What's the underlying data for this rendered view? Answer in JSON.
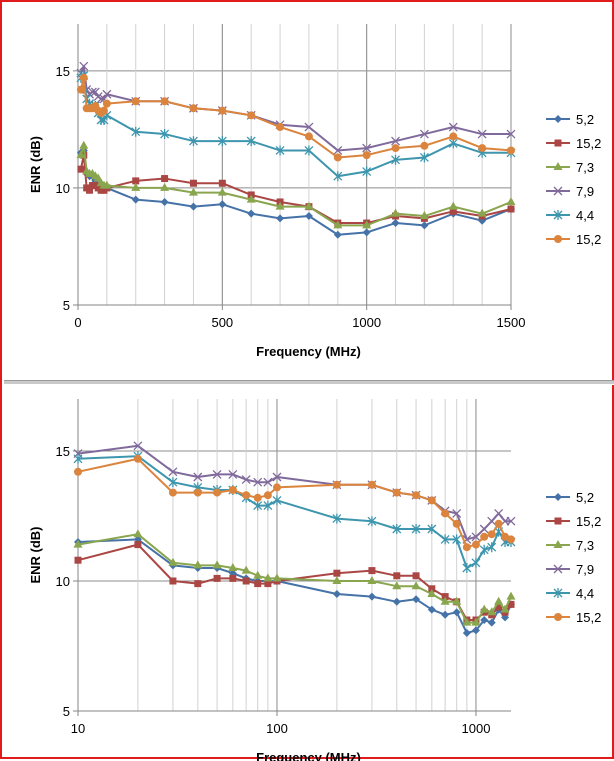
{
  "chart_data": [
    {
      "type": "line",
      "xscale": "linear",
      "xlim": [
        0,
        1500
      ],
      "ylim": [
        5,
        17
      ],
      "xticks": [
        0,
        500,
        1000,
        1500
      ],
      "yticks": [
        5,
        10,
        15
      ],
      "xlabel": "Frequency (MHz)",
      "ylabel": "ENR (dB)",
      "grid": true,
      "legend_position": "right",
      "x": [
        10,
        20,
        30,
        40,
        50,
        60,
        70,
        80,
        90,
        100,
        200,
        300,
        400,
        500,
        600,
        700,
        800,
        900,
        1000,
        1100,
        1200,
        1300,
        1400,
        1500
      ],
      "series": [
        {
          "name": "5,2",
          "color": "#4572a7",
          "marker": "diamond",
          "values": [
            11.5,
            11.6,
            10.6,
            10.5,
            10.5,
            10.3,
            10.1,
            10.0,
            10.0,
            10.0,
            9.5,
            9.4,
            9.2,
            9.3,
            8.9,
            8.7,
            8.8,
            8.0,
            8.1,
            8.5,
            8.4,
            8.9,
            8.6,
            9.1
          ]
        },
        {
          "name": "15,2",
          "color": "#aa4643",
          "marker": "square",
          "values": [
            10.8,
            11.4,
            10.0,
            9.9,
            10.1,
            10.1,
            10.0,
            9.9,
            9.9,
            10.0,
            10.3,
            10.4,
            10.2,
            10.2,
            9.7,
            9.4,
            9.2,
            8.5,
            8.5,
            8.8,
            8.7,
            9.0,
            8.8,
            9.1
          ]
        },
        {
          "name": "7,3",
          "color": "#89a54e",
          "marker": "triangle",
          "values": [
            11.4,
            11.8,
            10.7,
            10.6,
            10.6,
            10.5,
            10.4,
            10.2,
            10.1,
            10.1,
            10.0,
            10.0,
            9.8,
            9.8,
            9.5,
            9.2,
            9.2,
            8.4,
            8.4,
            8.9,
            8.8,
            9.2,
            8.9,
            9.4
          ]
        },
        {
          "name": "7,9",
          "color": "#80699b",
          "marker": "x",
          "values": [
            14.9,
            15.2,
            14.2,
            14.0,
            14.1,
            14.1,
            13.9,
            13.8,
            13.8,
            14.0,
            13.7,
            13.7,
            13.4,
            13.3,
            13.1,
            12.7,
            12.6,
            11.6,
            11.7,
            12.0,
            12.3,
            12.6,
            12.3,
            12.3
          ]
        },
        {
          "name": "4,4",
          "color": "#3d96ae",
          "marker": "star",
          "values": [
            14.7,
            14.8,
            13.8,
            13.6,
            13.5,
            13.5,
            13.2,
            12.9,
            12.9,
            13.1,
            12.4,
            12.3,
            12.0,
            12.0,
            12.0,
            11.6,
            11.6,
            10.5,
            10.7,
            11.2,
            11.3,
            11.9,
            11.5,
            11.5
          ]
        },
        {
          "name": "15,2",
          "color": "#db843d",
          "marker": "circle",
          "values": [
            14.2,
            14.7,
            13.4,
            13.4,
            13.4,
            13.5,
            13.3,
            13.2,
            13.3,
            13.6,
            13.7,
            13.7,
            13.4,
            13.3,
            13.1,
            12.6,
            12.2,
            11.3,
            11.4,
            11.7,
            11.8,
            12.2,
            11.7,
            11.6
          ]
        }
      ]
    },
    {
      "type": "line",
      "xscale": "log",
      "xlim": [
        10,
        1500
      ],
      "ylim": [
        5,
        17
      ],
      "xticks": [
        10,
        100,
        1000
      ],
      "yticks": [
        5,
        10,
        15
      ],
      "xlabel": "Frequency (MHz)",
      "ylabel": "ENR (dB)",
      "grid": true,
      "legend_position": "right",
      "x": [
        10,
        20,
        30,
        40,
        50,
        60,
        70,
        80,
        90,
        100,
        200,
        300,
        400,
        500,
        600,
        700,
        800,
        900,
        1000,
        1100,
        1200,
        1300,
        1400,
        1500
      ],
      "series": [
        {
          "name": "5,2",
          "color": "#4572a7",
          "marker": "diamond",
          "values": [
            11.5,
            11.6,
            10.6,
            10.5,
            10.5,
            10.3,
            10.1,
            10.0,
            10.0,
            10.0,
            9.5,
            9.4,
            9.2,
            9.3,
            8.9,
            8.7,
            8.8,
            8.0,
            8.1,
            8.5,
            8.4,
            8.9,
            8.6,
            9.1
          ]
        },
        {
          "name": "15,2",
          "color": "#aa4643",
          "marker": "square",
          "values": [
            10.8,
            11.4,
            10.0,
            9.9,
            10.1,
            10.1,
            10.0,
            9.9,
            9.9,
            10.0,
            10.3,
            10.4,
            10.2,
            10.2,
            9.7,
            9.4,
            9.2,
            8.5,
            8.5,
            8.8,
            8.7,
            9.0,
            8.8,
            9.1
          ]
        },
        {
          "name": "7,3",
          "color": "#89a54e",
          "marker": "triangle",
          "values": [
            11.4,
            11.8,
            10.7,
            10.6,
            10.6,
            10.5,
            10.4,
            10.2,
            10.1,
            10.1,
            10.0,
            10.0,
            9.8,
            9.8,
            9.5,
            9.2,
            9.2,
            8.4,
            8.4,
            8.9,
            8.8,
            9.2,
            8.9,
            9.4
          ]
        },
        {
          "name": "7,9",
          "color": "#80699b",
          "marker": "x",
          "values": [
            14.9,
            15.2,
            14.2,
            14.0,
            14.1,
            14.1,
            13.9,
            13.8,
            13.8,
            14.0,
            13.7,
            13.7,
            13.4,
            13.3,
            13.1,
            12.7,
            12.6,
            11.6,
            11.7,
            12.0,
            12.3,
            12.6,
            12.3,
            12.3
          ]
        },
        {
          "name": "4,4",
          "color": "#3d96ae",
          "marker": "star",
          "values": [
            14.7,
            14.8,
            13.8,
            13.6,
            13.5,
            13.5,
            13.2,
            12.9,
            12.9,
            13.1,
            12.4,
            12.3,
            12.0,
            12.0,
            12.0,
            11.6,
            11.6,
            10.5,
            10.7,
            11.2,
            11.3,
            11.9,
            11.5,
            11.5
          ]
        },
        {
          "name": "15,2",
          "color": "#db843d",
          "marker": "circle",
          "values": [
            14.2,
            14.7,
            13.4,
            13.4,
            13.4,
            13.5,
            13.3,
            13.2,
            13.3,
            13.6,
            13.7,
            13.7,
            13.4,
            13.3,
            13.1,
            12.6,
            12.2,
            11.3,
            11.4,
            11.7,
            11.8,
            12.2,
            11.7,
            11.6
          ]
        }
      ]
    }
  ]
}
